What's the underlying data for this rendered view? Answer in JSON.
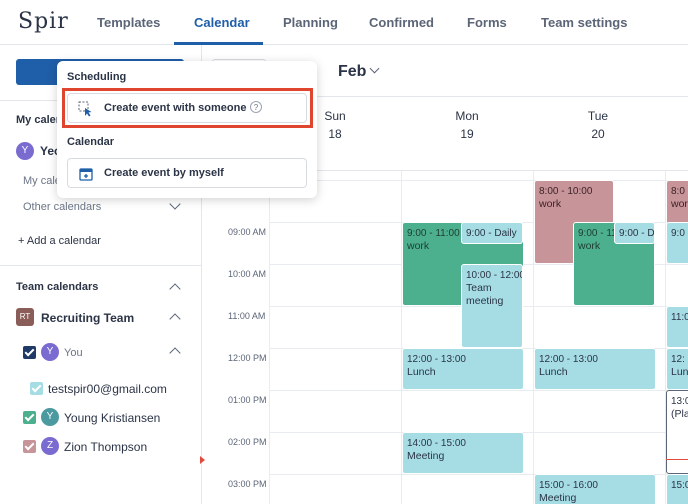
{
  "app": {
    "logo": "Spir"
  },
  "nav": {
    "tabs": [
      "Templates",
      "Calendar",
      "Planning",
      "Confirmed",
      "Forms",
      "Team settings"
    ],
    "active": "Calendar"
  },
  "header": {
    "month": "Feb"
  },
  "days": [
    {
      "name": "Sun",
      "num": "18"
    },
    {
      "name": "Mon",
      "num": "19"
    },
    {
      "name": "Tue",
      "num": "20"
    }
  ],
  "time_labels": [
    "09:00 AM",
    "10:00 AM",
    "11:00 AM",
    "12:00 PM",
    "01:00 PM",
    "02:00 PM",
    "03:00 PM"
  ],
  "events": [
    {
      "time": "8:00 - 10:00",
      "title": "work"
    },
    {
      "time": "9:00 - 11:00",
      "title": "work"
    },
    {
      "time": "9:00 - Daily",
      "title": ""
    },
    {
      "time": "10:00 - 12:00",
      "title": "Team meeting"
    },
    {
      "time": "9:00 - 11:00",
      "title": "work"
    },
    {
      "time": "9:00 - D",
      "title": ""
    },
    {
      "time": "12:00 - 13:00",
      "title": "Lunch"
    },
    {
      "time": "12:00 - 13:00",
      "title": "Lunch"
    },
    {
      "time": "14:00 - 15:00",
      "title": "Meeting"
    },
    {
      "time": "15:00 - 16:00",
      "title": "Meeting"
    },
    {
      "time": "8:0",
      "title": "work"
    },
    {
      "time": "9:0",
      "title": ""
    },
    {
      "time": "11:0",
      "title": ""
    },
    {
      "time": "12:",
      "title": "Lunc"
    },
    {
      "time": "13:0",
      "title": "(Pla"
    },
    {
      "time": "15:0",
      "title": ""
    }
  ],
  "sidebar": {
    "my_calendars": "My calen",
    "user_initial": "Y",
    "user_name": "Yeo",
    "my_cal_text": "My cale",
    "other_calendars": "Other calendars",
    "add_calendar": "+ Add a calendar",
    "team_calendars": "Team calendars",
    "team_badge": "RT",
    "team_name": "Recruiting Team",
    "members": [
      {
        "initial": "Y",
        "name": "You"
      },
      {
        "initial": "",
        "name": "testspir00@gmail.com"
      },
      {
        "initial": "Y",
        "name": "Young Kristiansen"
      },
      {
        "initial": "Z",
        "name": "Zion Thompson"
      }
    ]
  },
  "dropdown": {
    "scheduling": "Scheduling",
    "create_with_someone": "Create event with someone",
    "help": "?",
    "calendar": "Calendar",
    "create_by_myself": "Create event by myself"
  },
  "colors": {
    "primary": "#1f5ea8",
    "green_event": "#4caf8d",
    "cyan_event": "#a6dde4",
    "rose_event": "#c79499",
    "highlight": "#e0452f"
  }
}
